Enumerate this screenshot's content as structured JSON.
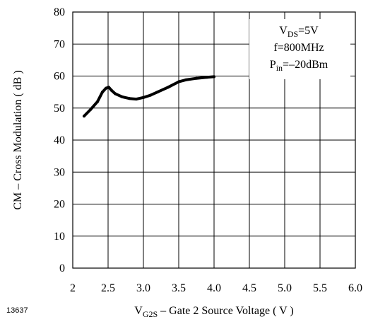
{
  "chart_data": {
    "type": "line",
    "title": "",
    "xlabel": "– Gate 2 Source Voltage ( V )",
    "xlabel_symbol": "V",
    "xlabel_sub": "G2S",
    "ylabel": "CM – Cross Modulation ( dB )",
    "xlim": [
      2.0,
      6.0
    ],
    "ylim": [
      0,
      80
    ],
    "x_ticks": [
      2.0,
      2.5,
      3.0,
      3.5,
      4.0,
      4.5,
      5.0,
      5.5,
      6.0
    ],
    "x_tick_labels": [
      "2",
      "2.5",
      "3.0",
      "3.5",
      "4.0",
      "4.5",
      "5.0",
      "5.5",
      "6.0"
    ],
    "y_ticks": [
      0,
      10,
      20,
      30,
      40,
      50,
      60,
      70,
      80
    ],
    "y_tick_labels": [
      "0",
      "10",
      "20",
      "30",
      "40",
      "50",
      "60",
      "70",
      "80"
    ],
    "grid": true,
    "series": [
      {
        "x": [
          2.16,
          2.25,
          2.35,
          2.42,
          2.47,
          2.51,
          2.55,
          2.6,
          2.7,
          2.8,
          2.9,
          3.0,
          3.1,
          3.2,
          3.35,
          3.5,
          3.6,
          3.75,
          3.9,
          4.0
        ],
        "y": [
          47.5,
          49.5,
          52.0,
          55.0,
          56.2,
          56.5,
          55.5,
          54.5,
          53.5,
          53.0,
          52.8,
          53.3,
          54.0,
          55.0,
          56.5,
          58.2,
          58.8,
          59.3,
          59.6,
          59.8
        ]
      }
    ],
    "legend": {
      "position": "top-right",
      "lines": [
        {
          "main": "V",
          "sub": "DS",
          "rest": "=5V"
        },
        {
          "main": "f=800MHz",
          "sub": "",
          "rest": ""
        },
        {
          "main": "P",
          "sub": "in",
          "rest": "=–20dBm"
        }
      ]
    },
    "figure_id": "13637",
    "colors": {
      "line": "#000000",
      "grid": "#000000",
      "background": "#ffffff"
    }
  }
}
